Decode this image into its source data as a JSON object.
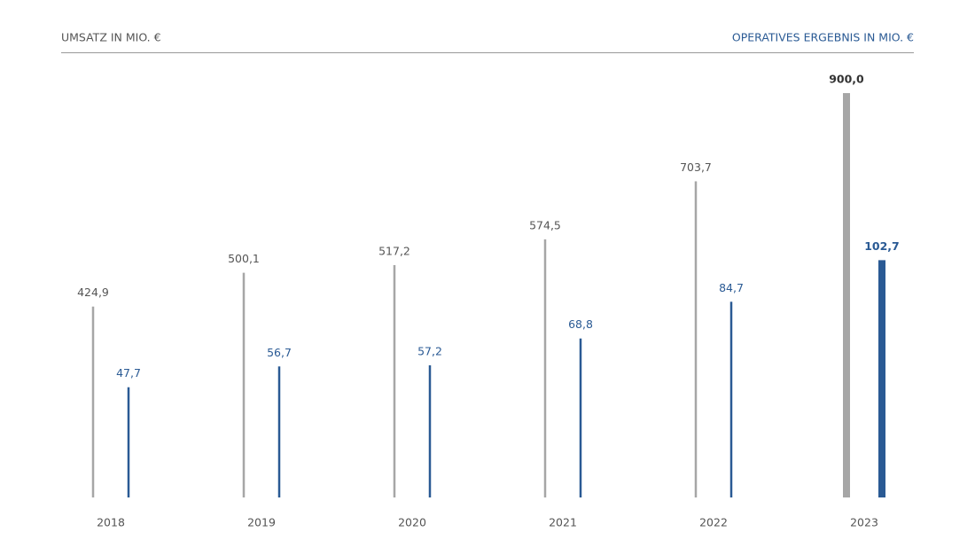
{
  "chart_data": {
    "type": "bar",
    "categories": [
      "2018",
      "2019",
      "2020",
      "2021",
      "2022",
      "2023"
    ],
    "series": [
      {
        "name": "UMSATZ IN MIO. €",
        "color": "#a6a6a6",
        "values": [
          424.9,
          500.1,
          517.2,
          574.5,
          703.7,
          900.0
        ],
        "value_labels": [
          "424,9",
          "500,1",
          "517,2",
          "574,5",
          "703,7",
          "900,0"
        ]
      },
      {
        "name": "OPERATIVES ERGEBNIS IN MIO. €",
        "color": "#2a5a94",
        "axis": "y2",
        "values": [
          47.7,
          56.7,
          57.2,
          68.8,
          84.7,
          102.7
        ],
        "value_labels": [
          "47,7",
          "56,7",
          "57,2",
          "68,8",
          "84,7",
          "102,7"
        ]
      }
    ],
    "ylim": [
      0,
      900
    ],
    "y2lim": [
      0,
      175
    ],
    "grid": false
  }
}
